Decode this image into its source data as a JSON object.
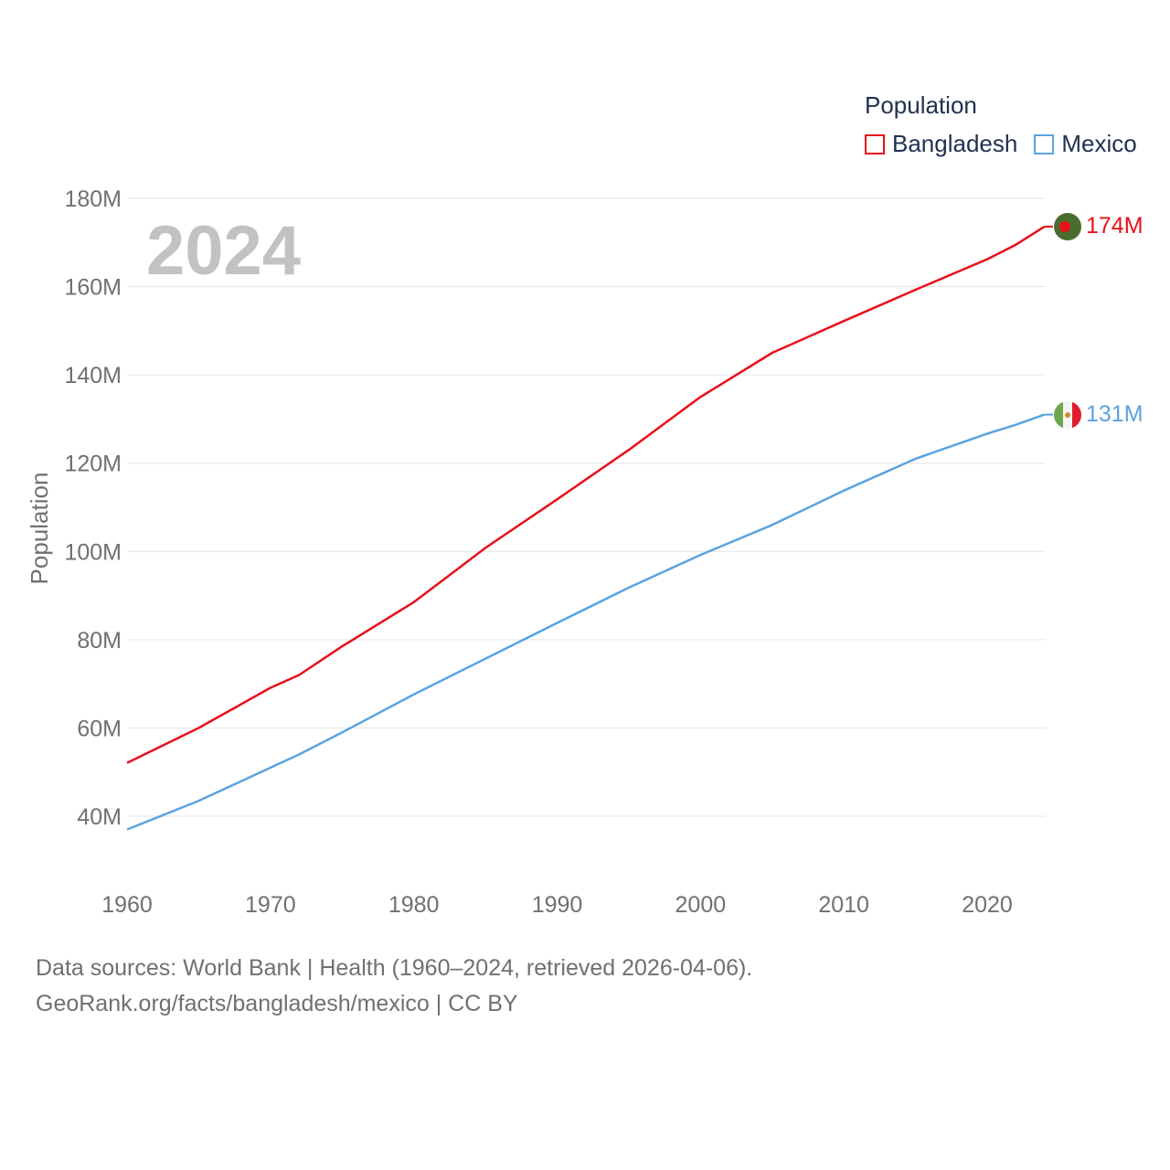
{
  "legend": {
    "title": "Population",
    "items": [
      {
        "label": "Bangladesh",
        "color": "#e8101a"
      },
      {
        "label": "Mexico",
        "color": "#5ba3e0"
      }
    ]
  },
  "year_label": "2024",
  "end_labels": {
    "bangladesh": "174M",
    "mexico": "131M"
  },
  "footer": {
    "line1": "Data sources: World Bank | Health (1960–2024, retrieved 2026-04-06).",
    "line2": "GeoRank.org/facts/bangladesh/mexico | CC BY"
  },
  "chart_data": {
    "type": "line",
    "title": "Population",
    "xlabel": "",
    "ylabel": "Population",
    "xlim": [
      1960,
      2024
    ],
    "ylim": [
      30,
      183
    ],
    "x_ticks": [
      1960,
      1970,
      1980,
      1990,
      2000,
      2010,
      2020
    ],
    "x_tick_labels": [
      "1960",
      "1970",
      "1980",
      "1990",
      "2000",
      "2010",
      "2020"
    ],
    "y_ticks": [
      40,
      60,
      80,
      100,
      120,
      140,
      160,
      180
    ],
    "y_tick_labels": [
      "40M",
      "60M",
      "80M",
      "100M",
      "120M",
      "140M",
      "160M",
      "180M"
    ],
    "grid": true,
    "legend_position": "top-right",
    "x": [
      1960,
      1965,
      1970,
      1972,
      1975,
      1980,
      1985,
      1990,
      1995,
      2000,
      2005,
      2010,
      2015,
      2020,
      2022,
      2024
    ],
    "series": [
      {
        "name": "Bangladesh",
        "color": "#e8101a",
        "values": [
          52.1,
          60.0,
          69.1,
          72.0,
          78.5,
          88.5,
          100.8,
          111.8,
          123.0,
          135.0,
          145.0,
          152.2,
          159.3,
          166.2,
          169.5,
          173.6
        ]
      },
      {
        "name": "Mexico",
        "color": "#5ba3e0",
        "values": [
          37.0,
          43.5,
          51.0,
          54.0,
          59.0,
          67.6,
          75.7,
          83.8,
          91.8,
          99.2,
          106.0,
          113.8,
          121.0,
          126.7,
          128.7,
          131.0
        ]
      }
    ]
  }
}
